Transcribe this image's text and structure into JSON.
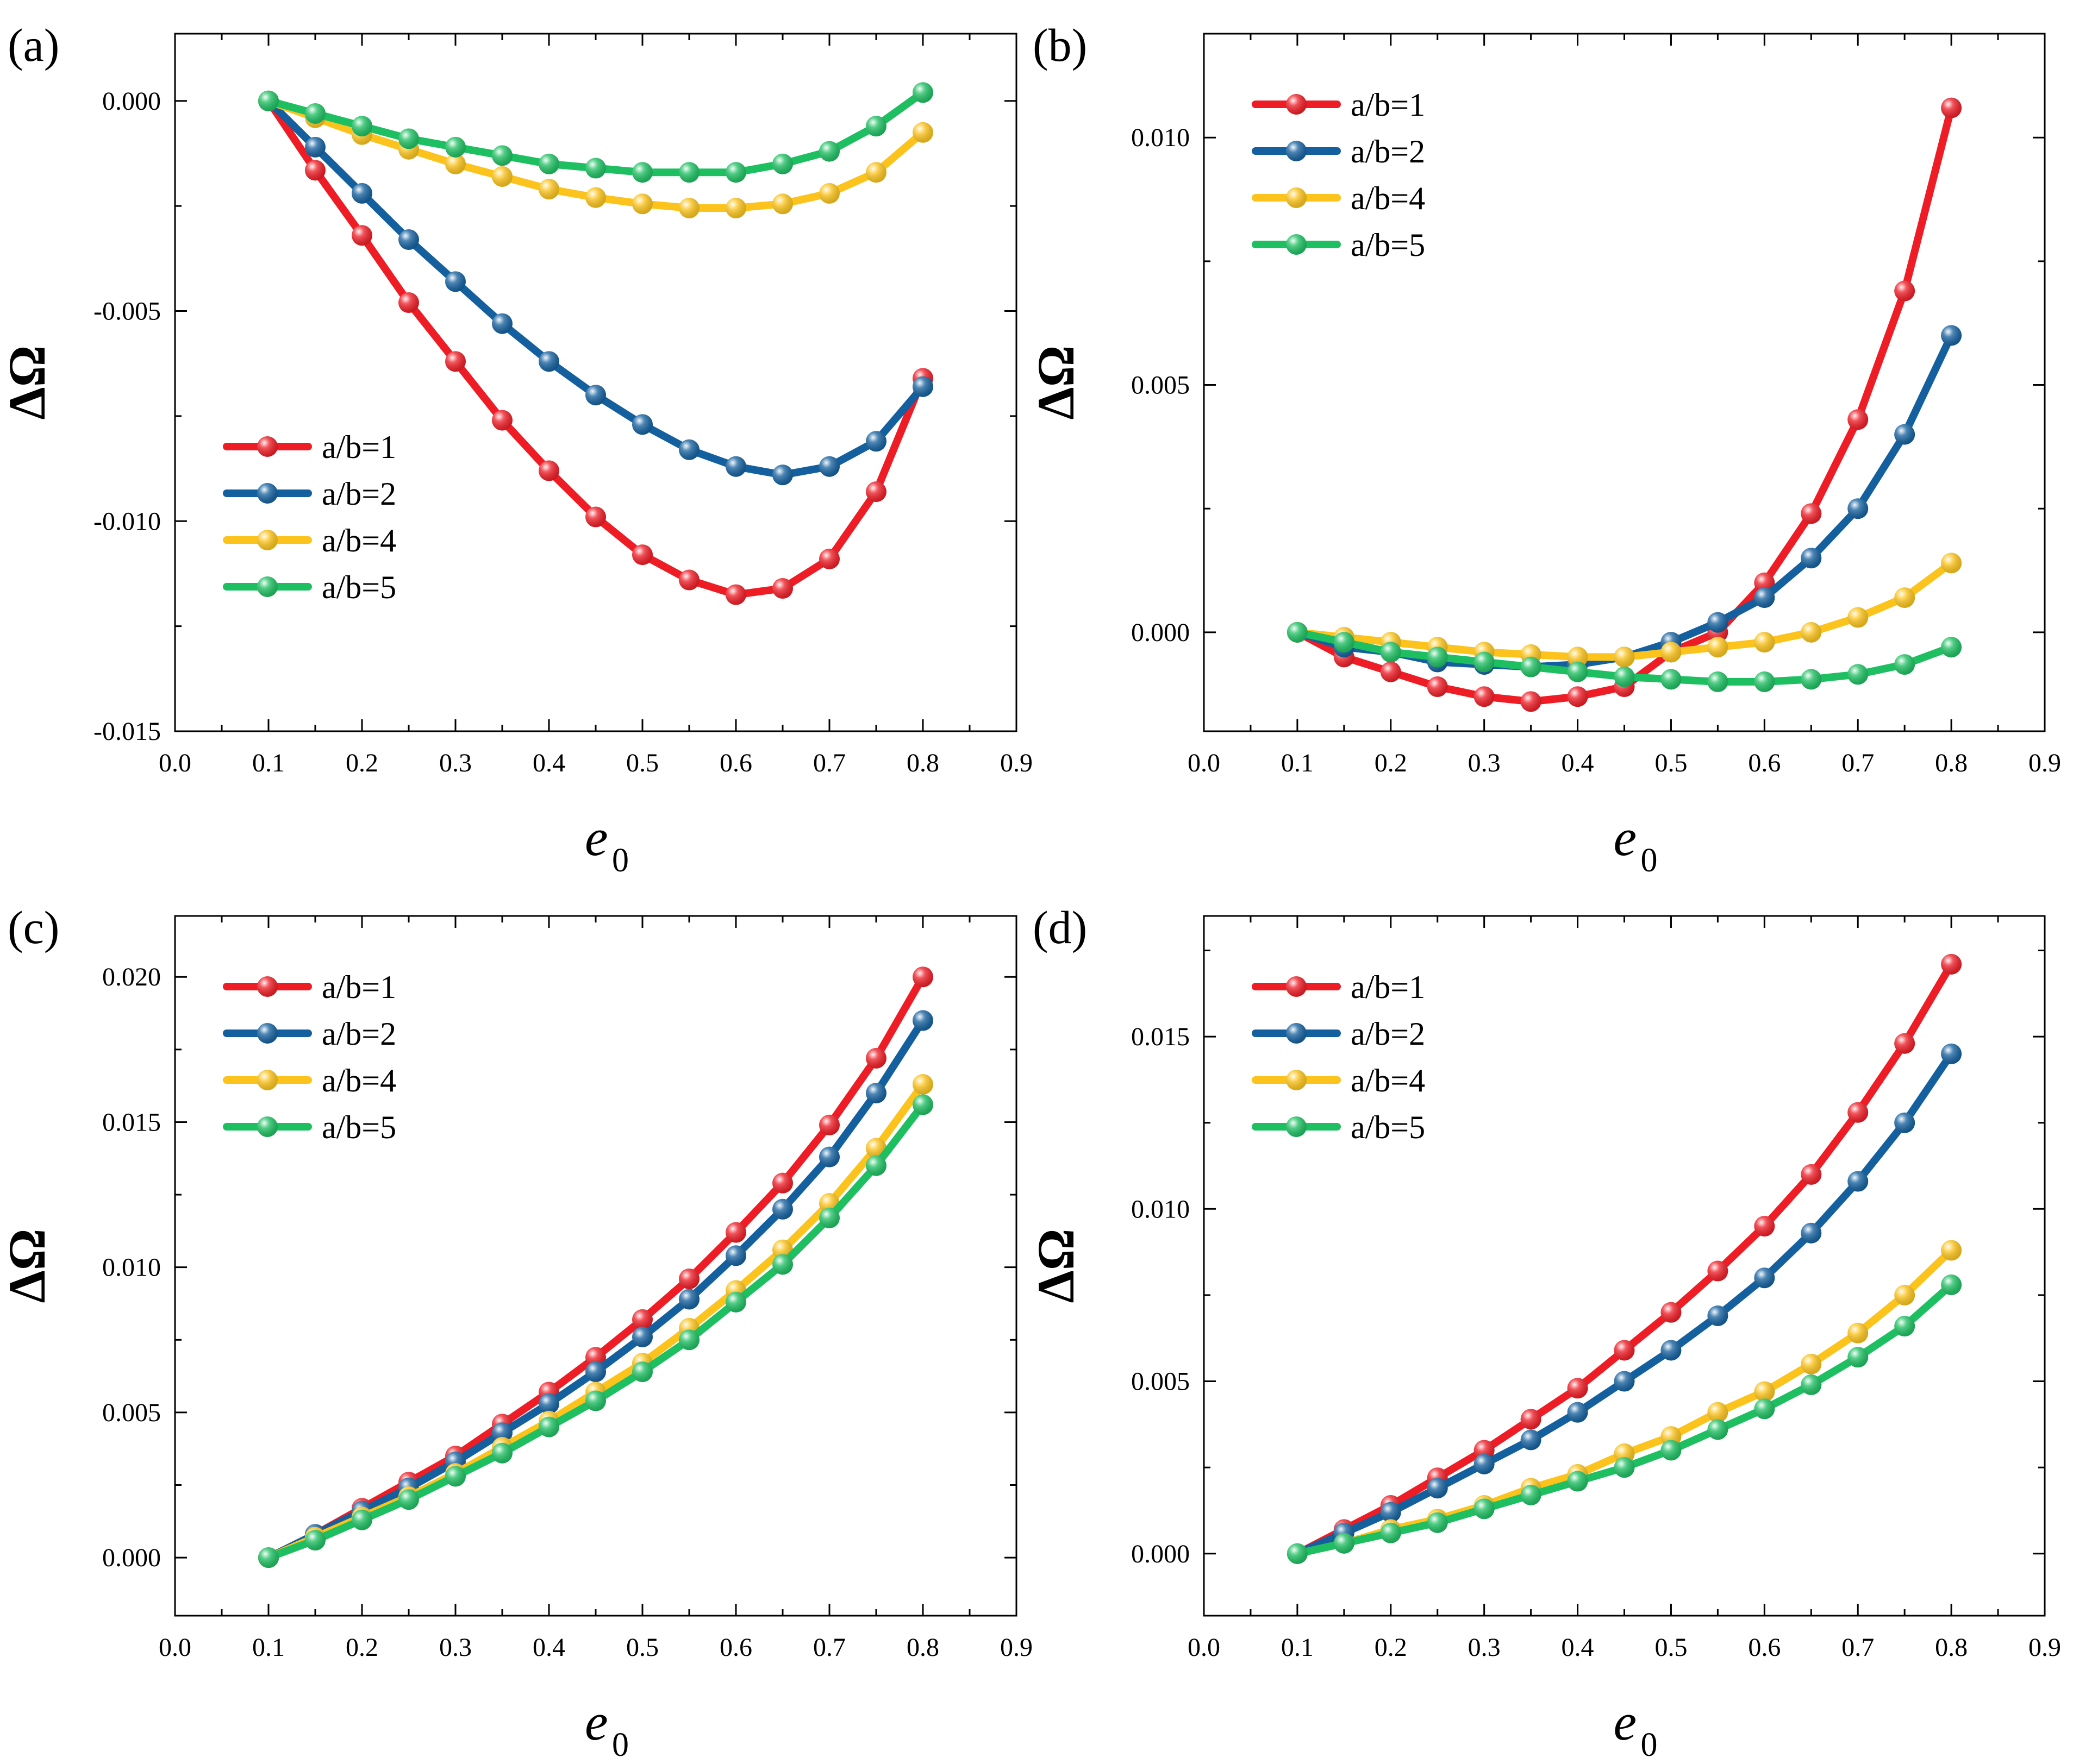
{
  "chart_data": [
    {
      "type": "line",
      "panel_label": "(a)",
      "xlabel": "e",
      "xlabel_sub": "0",
      "ylabel": "ΔΩ",
      "xlim": [
        0.0,
        0.9
      ],
      "ylim": [
        -0.015,
        0.0016
      ],
      "xticks": [
        "0.0",
        "0.1",
        "0.2",
        "0.3",
        "0.4",
        "0.5",
        "0.6",
        "0.7",
        "0.8",
        "0.9"
      ],
      "yticks": [
        {
          "v": 0.0,
          "label": "0.000"
        },
        {
          "v": -0.005,
          "label": "-0.005"
        },
        {
          "v": -0.01,
          "label": "-0.010"
        },
        {
          "v": -0.015,
          "label": "-0.015"
        }
      ],
      "legend": "left-bottom",
      "x": [
        0.1,
        0.15,
        0.2,
        0.25,
        0.3,
        0.35,
        0.4,
        0.45,
        0.5,
        0.55,
        0.6,
        0.65,
        0.7,
        0.75,
        0.8
      ],
      "series": [
        {
          "name": "a/b=1",
          "color": "#ee1c25",
          "values": [
            0,
            -0.00165,
            -0.0032,
            -0.0048,
            -0.0062,
            -0.0076,
            -0.0088,
            -0.0099,
            -0.0108,
            -0.0114,
            -0.01175,
            -0.0116,
            -0.0109,
            -0.0093,
            -0.0066
          ]
        },
        {
          "name": "a/b=2",
          "color": "#14609e",
          "values": [
            0,
            -0.0011,
            -0.0022,
            -0.0033,
            -0.0043,
            -0.0053,
            -0.0062,
            -0.007,
            -0.0077,
            -0.0083,
            -0.0087,
            -0.0089,
            -0.0087,
            -0.0081,
            -0.0068
          ]
        },
        {
          "name": "a/b=4",
          "color": "#fbc31b",
          "values": [
            0,
            -0.0004,
            -0.0008,
            -0.00115,
            -0.0015,
            -0.0018,
            -0.0021,
            -0.0023,
            -0.00245,
            -0.00255,
            -0.00255,
            -0.00245,
            -0.0022,
            -0.0017,
            -0.00075
          ]
        },
        {
          "name": "a/b=5",
          "color": "#1dbf61",
          "values": [
            0,
            -0.0003,
            -0.0006,
            -0.0009,
            -0.0011,
            -0.0013,
            -0.0015,
            -0.0016,
            -0.0017,
            -0.0017,
            -0.0017,
            -0.0015,
            -0.0012,
            -0.0006,
            0.0002
          ]
        }
      ]
    },
    {
      "type": "line",
      "panel_label": "(b)",
      "xlabel": "e",
      "xlabel_sub": "0",
      "ylabel": "ΔΩ",
      "xlim": [
        0.0,
        0.9
      ],
      "ylim": [
        -0.002,
        0.0121
      ],
      "xticks": [
        "0.0",
        "0.1",
        "0.2",
        "0.3",
        "0.4",
        "0.5",
        "0.6",
        "0.7",
        "0.8",
        "0.9"
      ],
      "yticks": [
        {
          "v": 0.0,
          "label": "0.000"
        },
        {
          "v": 0.005,
          "label": "0.005"
        },
        {
          "v": 0.01,
          "label": "0.010"
        }
      ],
      "legend": "top-left",
      "x": [
        0.1,
        0.15,
        0.2,
        0.25,
        0.3,
        0.35,
        0.4,
        0.45,
        0.5,
        0.55,
        0.6,
        0.65,
        0.7,
        0.75,
        0.8
      ],
      "series": [
        {
          "name": "a/b=1",
          "color": "#ee1c25",
          "values": [
            0,
            -0.0005,
            -0.0008,
            -0.0011,
            -0.0013,
            -0.0014,
            -0.0013,
            -0.0011,
            -0.0004,
            0.0,
            0.001,
            0.0024,
            0.0043,
            0.0069,
            0.0106
          ]
        },
        {
          "name": "a/b=2",
          "color": "#14609e",
          "values": [
            0,
            -0.0003,
            -0.0004,
            -0.0006,
            -0.00065,
            -0.0007,
            -0.00065,
            -0.0005,
            -0.0002,
            0.0002,
            0.0007,
            0.0015,
            0.0025,
            0.004,
            0.006
          ]
        },
        {
          "name": "a/b=4",
          "color": "#fbc31b",
          "values": [
            0,
            -0.0001,
            -0.0002,
            -0.0003,
            -0.0004,
            -0.00045,
            -0.0005,
            -0.0005,
            -0.0004,
            -0.0003,
            -0.0002,
            0.0,
            0.0003,
            0.0007,
            0.0014
          ]
        },
        {
          "name": "a/b=5",
          "color": "#1dbf61",
          "values": [
            0,
            -0.0002,
            -0.0004,
            -0.0005,
            -0.0006,
            -0.0007,
            -0.0008,
            -0.0009,
            -0.00095,
            -0.001,
            -0.001,
            -0.00095,
            -0.00085,
            -0.00065,
            -0.0003
          ]
        }
      ]
    },
    {
      "type": "line",
      "panel_label": "(c)",
      "xlabel": "e",
      "xlabel_sub": "0",
      "ylabel": "ΔΩ",
      "xlim": [
        0.0,
        0.9
      ],
      "ylim": [
        -0.002,
        0.0221
      ],
      "xticks": [
        "0.0",
        "0.1",
        "0.2",
        "0.3",
        "0.4",
        "0.5",
        "0.6",
        "0.7",
        "0.8",
        "0.9"
      ],
      "yticks": [
        {
          "v": 0.0,
          "label": "0.000"
        },
        {
          "v": 0.005,
          "label": "0.005"
        },
        {
          "v": 0.01,
          "label": "0.010"
        },
        {
          "v": 0.015,
          "label": "0.015"
        },
        {
          "v": 0.02,
          "label": "0.020"
        }
      ],
      "legend": "top-left",
      "x": [
        0.1,
        0.15,
        0.2,
        0.25,
        0.3,
        0.35,
        0.4,
        0.45,
        0.5,
        0.55,
        0.6,
        0.65,
        0.7,
        0.75,
        0.8
      ],
      "series": [
        {
          "name": "a/b=1",
          "color": "#ee1c25",
          "values": [
            0,
            0.0008,
            0.0017,
            0.0026,
            0.0035,
            0.0046,
            0.0057,
            0.0069,
            0.0082,
            0.0096,
            0.0112,
            0.0129,
            0.0149,
            0.0172,
            0.02
          ]
        },
        {
          "name": "a/b=2",
          "color": "#14609e",
          "values": [
            0,
            0.0008,
            0.0016,
            0.0024,
            0.0033,
            0.0043,
            0.0053,
            0.0064,
            0.0076,
            0.0089,
            0.0104,
            0.012,
            0.0138,
            0.016,
            0.0185
          ]
        },
        {
          "name": "a/b=4",
          "color": "#fbc31b",
          "values": [
            0,
            0.0007,
            0.0014,
            0.0021,
            0.0029,
            0.0038,
            0.0047,
            0.0057,
            0.0067,
            0.0079,
            0.0092,
            0.0106,
            0.0122,
            0.0141,
            0.0163
          ]
        },
        {
          "name": "a/b=5",
          "color": "#1dbf61",
          "values": [
            0,
            0.0006,
            0.0013,
            0.002,
            0.0028,
            0.0036,
            0.0045,
            0.0054,
            0.0064,
            0.0075,
            0.0088,
            0.0101,
            0.0117,
            0.0135,
            0.0156
          ]
        }
      ]
    },
    {
      "type": "line",
      "panel_label": "(d)",
      "xlabel": "e",
      "xlabel_sub": "0",
      "ylabel": "ΔΩ",
      "xlim": [
        0.0,
        0.9
      ],
      "ylim": [
        -0.0018,
        0.0185
      ],
      "xticks": [
        "0.0",
        "0.1",
        "0.2",
        "0.3",
        "0.4",
        "0.5",
        "0.6",
        "0.7",
        "0.8",
        "0.9"
      ],
      "yticks": [
        {
          "v": 0.0,
          "label": "0.000"
        },
        {
          "v": 0.005,
          "label": "0.005"
        },
        {
          "v": 0.01,
          "label": "0.010"
        },
        {
          "v": 0.015,
          "label": "0.015"
        }
      ],
      "legend": "top-left",
      "x": [
        0.1,
        0.15,
        0.2,
        0.25,
        0.3,
        0.35,
        0.4,
        0.45,
        0.5,
        0.55,
        0.6,
        0.65,
        0.7,
        0.75,
        0.8
      ],
      "series": [
        {
          "name": "a/b=1",
          "color": "#ee1c25",
          "values": [
            0,
            0.0007,
            0.0014,
            0.0022,
            0.003,
            0.0039,
            0.0048,
            0.0059,
            0.007,
            0.0082,
            0.0095,
            0.011,
            0.0128,
            0.0148,
            0.0171
          ]
        },
        {
          "name": "a/b=2",
          "color": "#14609e",
          "values": [
            0,
            0.0006,
            0.0012,
            0.0019,
            0.0026,
            0.0033,
            0.0041,
            0.005,
            0.0059,
            0.0069,
            0.008,
            0.0093,
            0.0108,
            0.0125,
            0.0145
          ]
        },
        {
          "name": "a/b=4",
          "color": "#fbc31b",
          "values": [
            0,
            0.0003,
            0.0007,
            0.001,
            0.0014,
            0.0019,
            0.0023,
            0.0029,
            0.0034,
            0.0041,
            0.0047,
            0.0055,
            0.0064,
            0.0075,
            0.0088
          ]
        },
        {
          "name": "a/b=5",
          "color": "#1dbf61",
          "values": [
            0,
            0.0003,
            0.0006,
            0.0009,
            0.0013,
            0.0017,
            0.0021,
            0.0025,
            0.003,
            0.0036,
            0.0042,
            0.0049,
            0.0057,
            0.0066,
            0.0078
          ]
        }
      ]
    }
  ]
}
